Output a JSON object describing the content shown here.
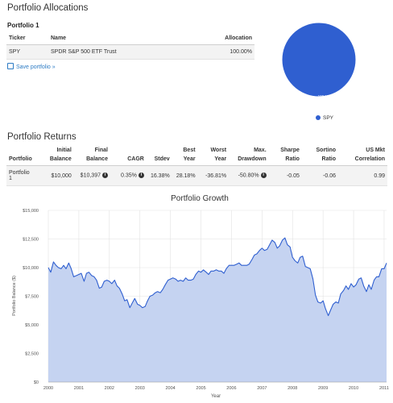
{
  "allocations": {
    "title": "Portfolio Allocations",
    "portfolio_name": "Portfolio 1",
    "columns": [
      "Ticker",
      "Name",
      "Allocation"
    ],
    "rows": [
      {
        "ticker": "SPY",
        "name": "SPDR S&P 500 ETF Trust",
        "allocation": "100.00%"
      }
    ],
    "save_label": "Save portfolio »",
    "pie": {
      "slices": [
        {
          "label": "SPY",
          "value": 100,
          "color": "#2f5fd0"
        }
      ],
      "slice_label": "100 %"
    },
    "legend_label": "SPY"
  },
  "returns": {
    "title": "Portfolio Returns",
    "columns": [
      "Portfolio",
      "Initial Balance",
      "Final Balance",
      "CAGR",
      "Stdev",
      "Best Year",
      "Worst Year",
      "Max. Drawdown",
      "Sharpe Ratio",
      "Sortino Ratio",
      "US Mkt Correlation"
    ],
    "rows": [
      {
        "portfolio": "Portfolio 1",
        "initial_balance": "$10,000",
        "final_balance": "$10,397",
        "cagr": "0.35%",
        "stdev": "16.38%",
        "best_year": "28.18%",
        "worst_year": "-36.81%",
        "max_drawdown": "-50.80%",
        "sharpe": "-0.05",
        "sortino": "-0.06",
        "us_mkt_corr": "0.99"
      }
    ]
  },
  "chart_data": {
    "type": "area",
    "title": "Portfolio Growth",
    "xlabel": "Year",
    "ylabel": "Portfolio Balance ($)",
    "xlim": [
      2000,
      2011.08
    ],
    "ylim": [
      0,
      15000
    ],
    "x_ticks": [
      "2000",
      "2001",
      "2002",
      "2003",
      "2004",
      "2005",
      "2006",
      "2007",
      "2008",
      "2009",
      "2010",
      "2011"
    ],
    "y_ticks": [
      "$0",
      "$2,500",
      "$5,000",
      "$7,500",
      "$10,000",
      "$12,500",
      "$15,000"
    ],
    "grid": true,
    "fill_color": "#c5d3f1",
    "line_color": "#2f5fd0",
    "series": [
      {
        "x": [
          2000.0,
          2000.08,
          2000.17,
          2000.25,
          2000.33,
          2000.42,
          2000.5,
          2000.58,
          2000.67,
          2000.75,
          2000.83,
          2000.92,
          2001.0,
          2001.08,
          2001.17,
          2001.25,
          2001.33,
          2001.42,
          2001.5,
          2001.58,
          2001.67,
          2001.75,
          2001.83,
          2001.92,
          2002.0,
          2002.08,
          2002.17,
          2002.25,
          2002.33,
          2002.42,
          2002.5,
          2002.58,
          2002.67,
          2002.75,
          2002.83,
          2002.92,
          2003.0,
          2003.08,
          2003.17,
          2003.25,
          2003.33,
          2003.42,
          2003.5,
          2003.58,
          2003.67,
          2003.75,
          2003.83,
          2003.92,
          2004.0,
          2004.08,
          2004.17,
          2004.25,
          2004.33,
          2004.42,
          2004.5,
          2004.58,
          2004.67,
          2004.75,
          2004.83,
          2004.92,
          2005.0,
          2005.08,
          2005.17,
          2005.25,
          2005.33,
          2005.42,
          2005.5,
          2005.58,
          2005.67,
          2005.75,
          2005.83,
          2005.92,
          2006.0,
          2006.08,
          2006.17,
          2006.25,
          2006.33,
          2006.42,
          2006.5,
          2006.58,
          2006.67,
          2006.75,
          2006.83,
          2006.92,
          2007.0,
          2007.08,
          2007.17,
          2007.25,
          2007.33,
          2007.42,
          2007.5,
          2007.58,
          2007.67,
          2007.75,
          2007.83,
          2007.92,
          2008.0,
          2008.08,
          2008.17,
          2008.25,
          2008.33,
          2008.42,
          2008.5,
          2008.58,
          2008.67,
          2008.75,
          2008.83,
          2008.92,
          2009.0,
          2009.08,
          2009.17,
          2009.25,
          2009.33,
          2009.42,
          2009.5,
          2009.58,
          2009.67,
          2009.75,
          2009.83,
          2009.92,
          2010.0,
          2010.08,
          2010.17,
          2010.25,
          2010.33,
          2010.42,
          2010.5,
          2010.58,
          2010.67,
          2010.75,
          2010.83,
          2010.92,
          2011.0,
          2011.08
        ],
        "y": [
          10000,
          9600,
          10500,
          10200,
          10000,
          9900,
          10200,
          9900,
          10400,
          9900,
          9200,
          9300,
          9400,
          9500,
          8800,
          9500,
          9600,
          9300,
          9200,
          8900,
          8200,
          8300,
          8800,
          8900,
          8800,
          8600,
          8900,
          8400,
          8200,
          7700,
          7100,
          7200,
          6500,
          6900,
          7300,
          6800,
          6700,
          6500,
          6600,
          7100,
          7500,
          7600,
          7800,
          7900,
          7800,
          8100,
          8500,
          8900,
          9000,
          9100,
          9000,
          8800,
          8900,
          8800,
          9100,
          8900,
          8900,
          9000,
          9400,
          9700,
          9600,
          9800,
          9600,
          9400,
          9700,
          9700,
          9800,
          9700,
          9700,
          9500,
          9900,
          10200,
          10200,
          10200,
          10300,
          10400,
          10200,
          10200,
          10200,
          10300,
          10700,
          11100,
          11200,
          11500,
          11700,
          11500,
          11600,
          12000,
          12400,
          12200,
          11700,
          11900,
          12400,
          12600,
          12000,
          11800,
          10900,
          10600,
          10400,
          10900,
          11000,
          10100,
          10000,
          9900,
          9000,
          7600,
          7000,
          6900,
          7100,
          6400,
          5800,
          6300,
          6800,
          7000,
          6900,
          7700,
          8000,
          8400,
          8100,
          8600,
          8300,
          8500,
          9000,
          9100,
          8400,
          7900,
          8500,
          8100,
          8900,
          9200,
          9200,
          9900,
          9900,
          10400
        ]
      }
    ]
  }
}
